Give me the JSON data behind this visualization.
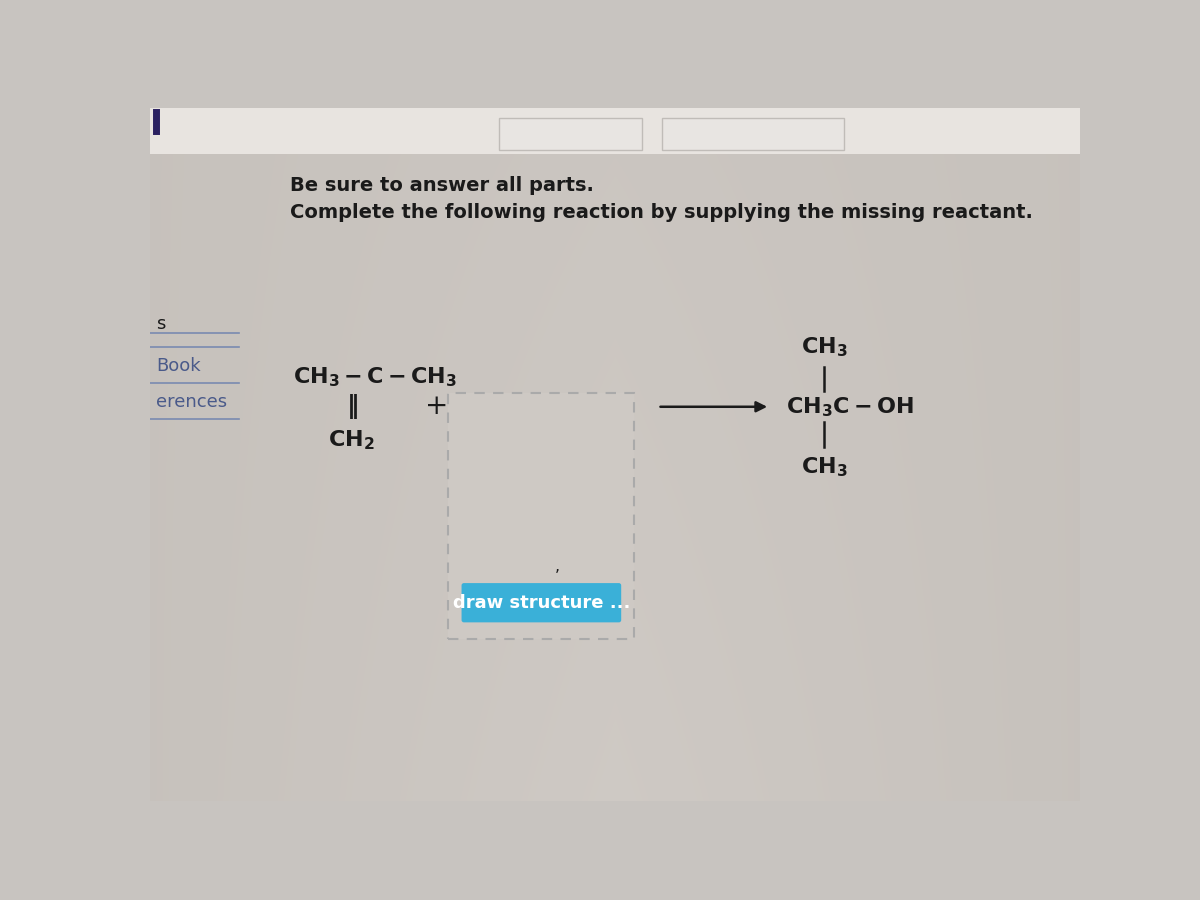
{
  "bg_color": "#c8c4c0",
  "bg_light_color": "#dedad6",
  "title_bold": "Be sure to answer all parts.",
  "subtitle": "Complete the following reaction by supplying the missing reactant.",
  "draw_button_text": "draw structure ...",
  "draw_button_color": "#3ab0d8",
  "draw_button_text_color": "#ffffff",
  "dashed_box_fill": "#cec9c4",
  "dashed_box_edge": "#aaaaaa",
  "text_color": "#1a1a1a",
  "sidebar_text_color": "#4a5a8a",
  "sidebar_line_color": "#7a8ab0",
  "top_bar_color": "#e8e4e0",
  "top_white_box_color": "#f0eeec"
}
